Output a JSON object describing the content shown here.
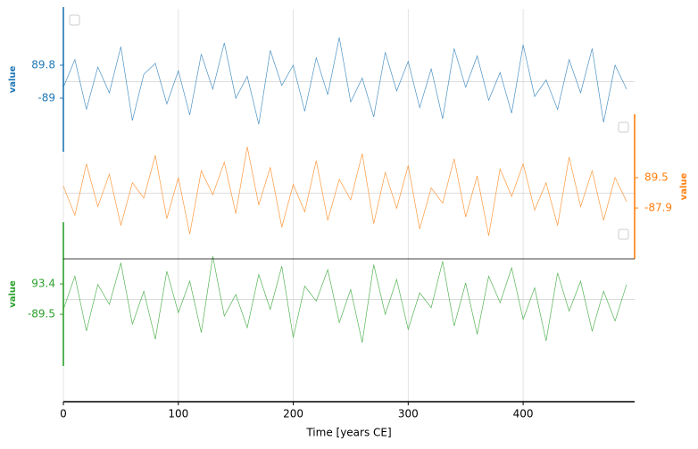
{
  "chart_data": {
    "type": "line",
    "xlabel": "Time [years CE]",
    "x": [
      0,
      10,
      20,
      30,
      40,
      50,
      60,
      70,
      80,
      90,
      100,
      110,
      120,
      130,
      140,
      150,
      160,
      170,
      180,
      190,
      200,
      210,
      220,
      230,
      240,
      250,
      260,
      270,
      280,
      290,
      300,
      310,
      320,
      330,
      340,
      350,
      360,
      370,
      380,
      390,
      400,
      410,
      420,
      430,
      440,
      450,
      460,
      470,
      480,
      490
    ],
    "xlim": [
      0,
      497
    ],
    "xticks": [
      0,
      100,
      200,
      300,
      400
    ],
    "grid": true,
    "series": [
      {
        "color": "#1f77b4",
        "ylabel": "value",
        "side": "left",
        "ylim": [
          -379,
          404
        ],
        "yticks": [
          89.8,
          -89.0
        ],
        "values": [
          -30,
          120,
          -150,
          80,
          -60,
          190,
          -210,
          40,
          100,
          -120,
          60,
          -180,
          150,
          -40,
          210,
          -90,
          30,
          -230,
          170,
          -20,
          90,
          -160,
          130,
          -70,
          240,
          -110,
          20,
          -190,
          160,
          -50,
          110,
          -140,
          70,
          -200,
          180,
          -30,
          140,
          -100,
          50,
          -170,
          200,
          -80,
          10,
          -150,
          120,
          -60,
          180,
          -220,
          90,
          -40
        ]
      },
      {
        "color": "#ff7f0e",
        "ylabel": "value",
        "side": "right",
        "ylim": [
          -385,
          460
        ],
        "yticks": [
          89.5,
          -87.9
        ],
        "values": [
          40,
          -130,
          170,
          -80,
          110,
          -190,
          60,
          -30,
          220,
          -150,
          90,
          -240,
          130,
          -10,
          180,
          -120,
          270,
          -70,
          150,
          -200,
          50,
          -110,
          190,
          -160,
          80,
          -40,
          230,
          -180,
          120,
          -90,
          160,
          -210,
          30,
          -60,
          200,
          -140,
          100,
          -250,
          140,
          -20,
          170,
          -100,
          60,
          -190,
          210,
          -80,
          130,
          -160,
          90,
          -50
        ]
      },
      {
        "color": "#2ca02c",
        "ylabel": "value",
        "side": "left",
        "ylim": [
          -401,
          465
        ],
        "yticks": [
          93.4,
          -89.5
        ],
        "values": [
          -60,
          140,
          -190,
          90,
          -30,
          220,
          -150,
          50,
          -240,
          170,
          -80,
          110,
          -200,
          260,
          -100,
          30,
          -170,
          150,
          -60,
          200,
          -230,
          80,
          -10,
          180,
          -140,
          60,
          -260,
          210,
          -90,
          120,
          -180,
          40,
          -50,
          230,
          -160,
          100,
          -210,
          140,
          -20,
          190,
          -120,
          70,
          -250,
          160,
          -70,
          110,
          -190,
          50,
          -130,
          90
        ]
      }
    ]
  }
}
